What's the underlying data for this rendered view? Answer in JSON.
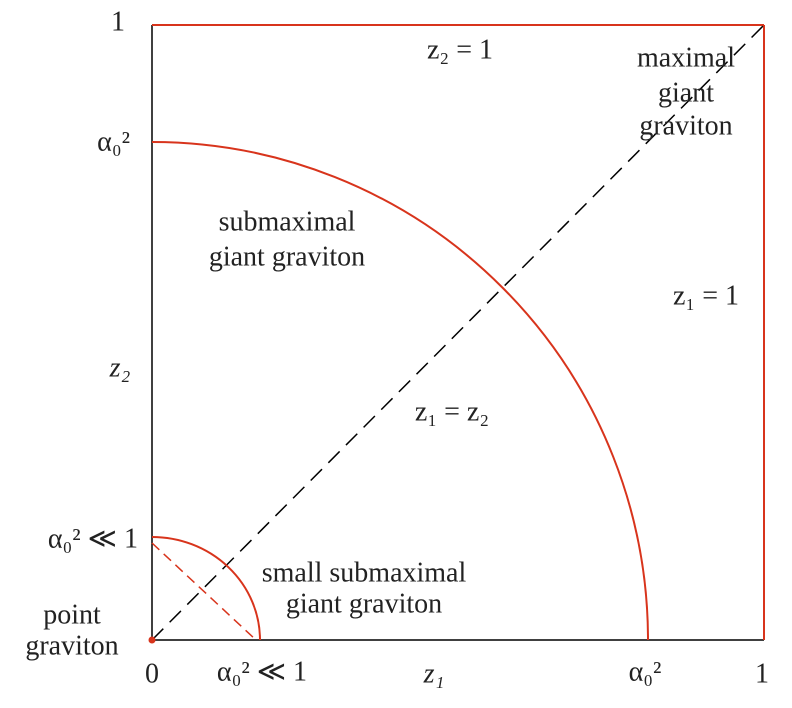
{
  "x_axis": {
    "label": "z₁",
    "ticks": [
      "0",
      "α₀² ≪ 1",
      "α₀²",
      "1"
    ]
  },
  "y_axis": {
    "label": "z₂",
    "ticks": [
      "1",
      "α₀²",
      "α₀² ≪ 1"
    ]
  },
  "annotations": {
    "top_edge": "z₂ = 1",
    "right_edge": "z₁ = 1",
    "diagonal": "z₁ = z₂",
    "maximal": [
      "maximal",
      "giant",
      "graviton"
    ],
    "submaximal": [
      "submaximal",
      "giant graviton"
    ],
    "small_submaximal": [
      "small submaximal",
      "giant graviton"
    ],
    "point": [
      "point",
      "graviton"
    ]
  }
}
